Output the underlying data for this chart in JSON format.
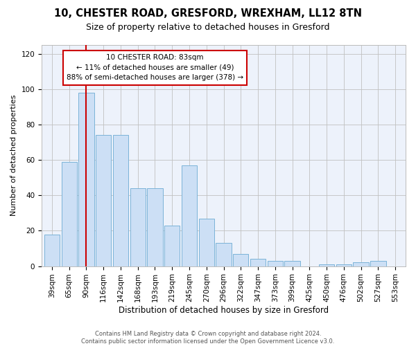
{
  "title1": "10, CHESTER ROAD, GRESFORD, WREXHAM, LL12 8TN",
  "title2": "Size of property relative to detached houses in Gresford",
  "xlabel": "Distribution of detached houses by size in Gresford",
  "ylabel": "Number of detached properties",
  "categories": [
    "39sqm",
    "65sqm",
    "90sqm",
    "116sqm",
    "142sqm",
    "168sqm",
    "193sqm",
    "219sqm",
    "245sqm",
    "270sqm",
    "296sqm",
    "322sqm",
    "347sqm",
    "373sqm",
    "399sqm",
    "425sqm",
    "450sqm",
    "476sqm",
    "502sqm",
    "527sqm",
    "553sqm"
  ],
  "values": [
    18,
    59,
    98,
    74,
    74,
    44,
    44,
    23,
    57,
    27,
    13,
    7,
    4,
    3,
    3,
    0,
    1,
    1,
    2,
    3,
    0
  ],
  "bar_color": "#ccdff5",
  "bar_edge_color": "#7ab3d8",
  "vline_x_index": 2,
  "vline_color": "#cc0000",
  "annotation_text": "10 CHESTER ROAD: 83sqm\n← 11% of detached houses are smaller (49)\n88% of semi-detached houses are larger (378) →",
  "annotation_box_color": "#ffffff",
  "annotation_box_edge": "#cc0000",
  "ylim": [
    0,
    125
  ],
  "yticks": [
    0,
    20,
    40,
    60,
    80,
    100,
    120
  ],
  "background_color": "#edf2fb",
  "footer_text": "Contains HM Land Registry data © Crown copyright and database right 2024.\nContains public sector information licensed under the Open Government Licence v3.0.",
  "title1_fontsize": 10.5,
  "title2_fontsize": 9,
  "xlabel_fontsize": 8.5,
  "ylabel_fontsize": 8,
  "tick_fontsize": 7.5,
  "annotation_fontsize": 7.5,
  "footer_fontsize": 6.0
}
